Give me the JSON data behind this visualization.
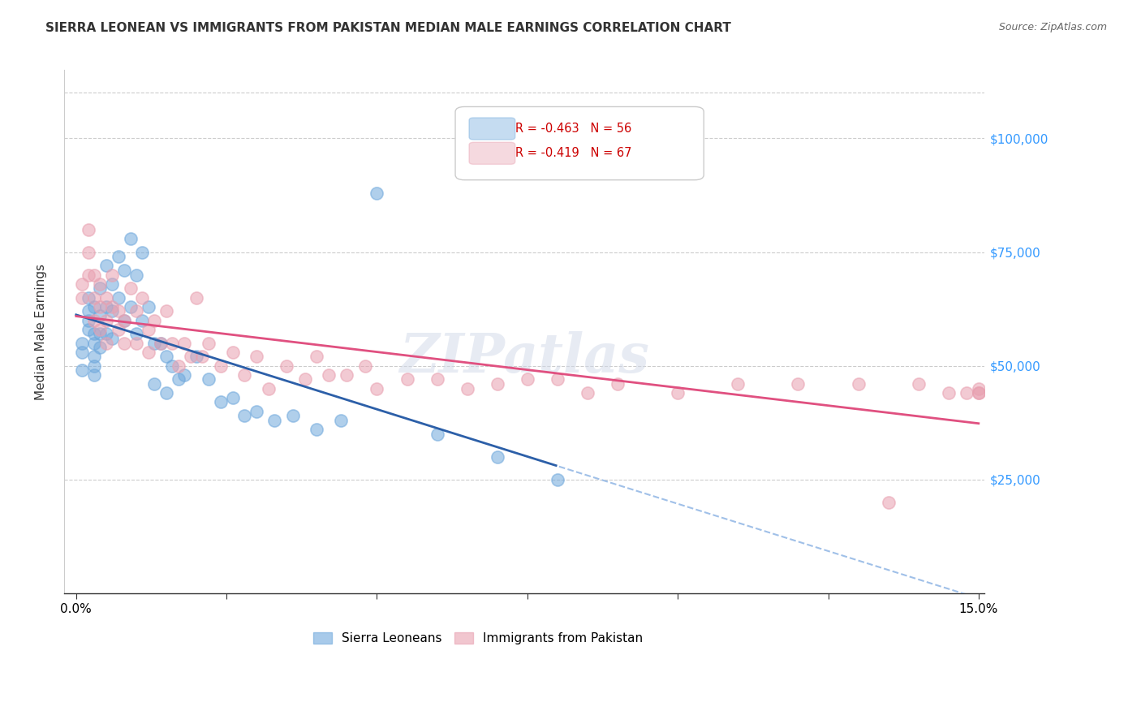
{
  "title": "SIERRA LEONEAN VS IMMIGRANTS FROM PAKISTAN MEDIAN MALE EARNINGS CORRELATION CHART",
  "source": "Source: ZipAtlas.com",
  "ylabel": "Median Male Earnings",
  "xlabel_ticks": [
    "0.0%",
    "15.0%"
  ],
  "ytick_labels": [
    "$25,000",
    "$50,000",
    "$75,000",
    "$100,000"
  ],
  "ytick_values": [
    25000,
    50000,
    75000,
    100000
  ],
  "xlim": [
    0.0,
    0.15
  ],
  "ylim": [
    0,
    110000
  ],
  "legend_entries": [
    {
      "label": "R = -0.463   N = 56",
      "color": "#6fa8dc"
    },
    {
      "label": "R = -0.419   N = 67",
      "color": "#ea9999"
    }
  ],
  "legend_labels": [
    "Sierra Leoneans",
    "Immigrants from Pakistan"
  ],
  "legend_colors": [
    "#6fa8dc",
    "#ea9999"
  ],
  "watermark": "ZIPatlas",
  "blue_color": "#4a86c8",
  "pink_color": "#e06090",
  "blue_scatter_color": "#6fa8dc",
  "pink_scatter_color": "#e8a0b0",
  "blue_line_color": "#2c5fa8",
  "pink_line_color": "#e05080",
  "blue_dashed_color": "#a0c0e8",
  "sierra_x": [
    0.001,
    0.001,
    0.001,
    0.002,
    0.002,
    0.002,
    0.002,
    0.003,
    0.003,
    0.003,
    0.003,
    0.003,
    0.003,
    0.004,
    0.004,
    0.004,
    0.004,
    0.005,
    0.005,
    0.005,
    0.006,
    0.006,
    0.006,
    0.007,
    0.007,
    0.008,
    0.008,
    0.009,
    0.009,
    0.01,
    0.01,
    0.011,
    0.011,
    0.012,
    0.013,
    0.013,
    0.014,
    0.015,
    0.015,
    0.016,
    0.017,
    0.018,
    0.02,
    0.022,
    0.024,
    0.026,
    0.028,
    0.03,
    0.033,
    0.036,
    0.04,
    0.044,
    0.05,
    0.06,
    0.07,
    0.08
  ],
  "sierra_y": [
    55000,
    53000,
    49000,
    58000,
    62000,
    65000,
    60000,
    63000,
    57000,
    55000,
    52000,
    50000,
    48000,
    67000,
    61000,
    57000,
    54000,
    72000,
    63000,
    57000,
    68000,
    62000,
    56000,
    74000,
    65000,
    71000,
    60000,
    78000,
    63000,
    70000,
    57000,
    75000,
    60000,
    63000,
    55000,
    46000,
    55000,
    52000,
    44000,
    50000,
    47000,
    48000,
    52000,
    47000,
    42000,
    43000,
    39000,
    40000,
    38000,
    39000,
    36000,
    38000,
    88000,
    35000,
    30000,
    25000
  ],
  "pakistan_x": [
    0.001,
    0.001,
    0.002,
    0.002,
    0.002,
    0.003,
    0.003,
    0.003,
    0.004,
    0.004,
    0.004,
    0.005,
    0.005,
    0.005,
    0.006,
    0.006,
    0.007,
    0.007,
    0.008,
    0.008,
    0.009,
    0.01,
    0.01,
    0.011,
    0.012,
    0.012,
    0.013,
    0.014,
    0.015,
    0.016,
    0.017,
    0.018,
    0.019,
    0.02,
    0.021,
    0.022,
    0.024,
    0.026,
    0.028,
    0.03,
    0.032,
    0.035,
    0.038,
    0.04,
    0.042,
    0.045,
    0.048,
    0.05,
    0.055,
    0.06,
    0.065,
    0.07,
    0.075,
    0.08,
    0.085,
    0.09,
    0.1,
    0.11,
    0.12,
    0.13,
    0.135,
    0.14,
    0.145,
    0.148,
    0.15,
    0.15,
    0.15
  ],
  "pakistan_y": [
    68000,
    65000,
    80000,
    75000,
    70000,
    70000,
    65000,
    60000,
    68000,
    63000,
    58000,
    65000,
    60000,
    55000,
    70000,
    63000,
    62000,
    58000,
    60000,
    55000,
    67000,
    62000,
    55000,
    65000,
    58000,
    53000,
    60000,
    55000,
    62000,
    55000,
    50000,
    55000,
    52000,
    65000,
    52000,
    55000,
    50000,
    53000,
    48000,
    52000,
    45000,
    50000,
    47000,
    52000,
    48000,
    48000,
    50000,
    45000,
    47000,
    47000,
    45000,
    46000,
    47000,
    47000,
    44000,
    46000,
    44000,
    46000,
    46000,
    46000,
    20000,
    46000,
    44000,
    44000,
    45000,
    44000,
    44000
  ],
  "blue_R": -0.463,
  "pink_R": -0.419,
  "blue_N": 56,
  "pink_N": 67
}
